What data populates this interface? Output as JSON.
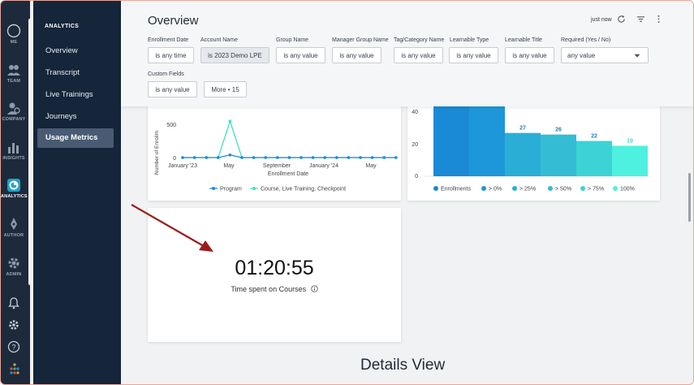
{
  "rail": {
    "items": [
      {
        "label": "ME",
        "icon": "user-circle-icon"
      },
      {
        "label": "TEAM",
        "icon": "team-icon"
      },
      {
        "label": "COMPANY",
        "icon": "company-icon"
      },
      {
        "label": "INSIGHTS",
        "icon": "bar-chart-icon"
      },
      {
        "label": "ANALYTICS",
        "icon": "analytics-icon"
      },
      {
        "label": "AUTHOR",
        "icon": "author-icon"
      },
      {
        "label": "ADMIN",
        "icon": "gear-icon"
      }
    ]
  },
  "nav": {
    "heading": "ANALYTICS",
    "items": [
      {
        "label": "Overview"
      },
      {
        "label": "Transcript"
      },
      {
        "label": "Live Trainings"
      },
      {
        "label": "Journeys"
      },
      {
        "label": "Usage Metrics",
        "active": true
      }
    ]
  },
  "header": {
    "title": "Overview",
    "status": "just now",
    "filters": [
      {
        "label": "Enrollment Date",
        "value": "is any time"
      },
      {
        "label": "Account Name",
        "value": "is 2023 Demo LPE"
      },
      {
        "label": "Group Name",
        "value": "is any value"
      },
      {
        "label": "Manager Group Name",
        "value": "is any value"
      },
      {
        "label": "Tag/Category Name",
        "value": "is any value"
      },
      {
        "label": "Learnable Type",
        "value": "is any value"
      },
      {
        "label": "Learnable Title",
        "value": "is any value"
      },
      {
        "label": "Required (Yes / No)",
        "value": "any value"
      }
    ],
    "custom_fields": {
      "label": "Custom Fields",
      "value": "is any value",
      "more": "More • 15"
    }
  },
  "line_chart": {
    "ylabel": "Number of Enrollm",
    "yticks": [
      "500",
      "0"
    ],
    "xticks": [
      "January '23",
      "May",
      "September",
      "January '24",
      "May"
    ],
    "xlabel": "Enrollment Date",
    "legend": [
      "Program",
      "Course, Live Training, Checkpoint"
    ],
    "colors": {
      "program": "#1e88e5",
      "course": "#3ee0c0"
    }
  },
  "bar_chart": {
    "yticks": [
      "40",
      "20",
      "0"
    ],
    "data_labels": [
      "27",
      "26",
      "22",
      "19"
    ],
    "legend": [
      "Enrollments",
      "> 0%",
      "> 25%",
      "> 50%",
      "> 75%",
      "100%"
    ],
    "colors": [
      "#1a8ad6",
      "#1e97da",
      "#2aaed6",
      "#34bcd4",
      "#3bd3d6",
      "#4ef0df"
    ]
  },
  "metric": {
    "value": "01:20:55",
    "label": "Time spent on Courses"
  },
  "details_title": "Details View",
  "chart_data": [
    {
      "type": "line",
      "title": "",
      "xlabel": "Enrollment Date",
      "ylabel": "Number of Enrollm",
      "x": [
        "Jan '23",
        "Feb '23",
        "Mar '23",
        "Apr '23",
        "May '23",
        "Jun '23",
        "Jul '23",
        "Aug '23",
        "Sep '23",
        "Oct '23",
        "Nov '23",
        "Dec '23",
        "Jan '24",
        "Feb '24",
        "Mar '24",
        "Apr '24",
        "May '24",
        "Jun '24",
        "Jul '24"
      ],
      "ylim": [
        0,
        560
      ],
      "series": [
        {
          "name": "Program",
          "values": [
            0,
            0,
            0,
            0,
            40,
            0,
            0,
            0,
            0,
            0,
            0,
            0,
            0,
            0,
            0,
            0,
            0,
            0,
            0
          ]
        },
        {
          "name": "Course, Live Training, Checkpoint",
          "values": [
            0,
            0,
            0,
            0,
            560,
            0,
            0,
            0,
            0,
            0,
            0,
            0,
            0,
            0,
            0,
            0,
            0,
            0,
            0
          ]
        }
      ]
    },
    {
      "type": "bar",
      "title": "",
      "categories": [
        "Enrollments",
        "> 0%",
        "> 25%",
        "> 50%",
        "> 75%",
        "100%"
      ],
      "values": [
        45,
        45,
        27,
        26,
        22,
        19
      ],
      "ylim": [
        0,
        45
      ]
    }
  ]
}
